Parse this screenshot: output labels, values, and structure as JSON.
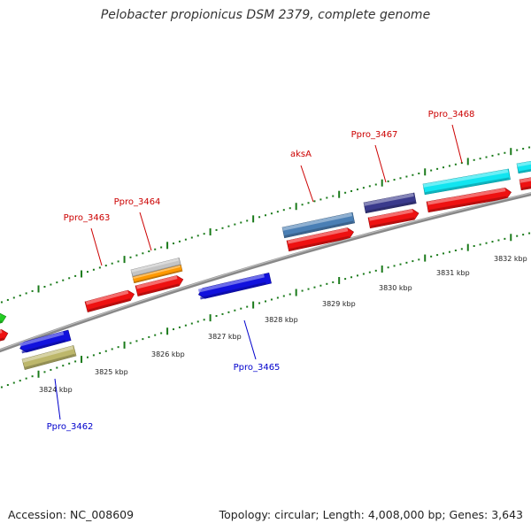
{
  "title": "Pelobacter propionicus DSM 2379, complete genome",
  "footer": {
    "accession": "Accession: NC_008609",
    "summary": "Topology: circular; Length: 4,008,000 bp; Genes: 3,643"
  },
  "genes": [
    {
      "name": "Ppro_3462",
      "color": "#0000cc"
    },
    {
      "name": "Ppro_3463",
      "color": "#cc0000"
    },
    {
      "name": "Ppro_3464",
      "color": "#cc0000"
    },
    {
      "name": "Ppro_3465",
      "color": "#0000cc"
    },
    {
      "name": "aksA",
      "color": "#cc0000"
    },
    {
      "name": "Ppro_3467",
      "color": "#cc0000"
    },
    {
      "name": "Ppro_3468",
      "color": "#cc0000"
    }
  ],
  "scale_labels": [
    "3824 kbp",
    "3825 kbp",
    "3826 kbp",
    "3827 kbp",
    "3828 kbp",
    "3829 kbp",
    "3830 kbp",
    "3831 kbp",
    "3832 kbp"
  ],
  "colors": {
    "backbone": "#888888",
    "tick": "#1a7a1a",
    "feature_red": "#ee1111",
    "feature_blue": "#1111dd",
    "feature_steel": "#4a7fb5",
    "feature_navy": "#3a3a8c",
    "feature_cyan": "#11e5f0",
    "feature_khaki": "#bdb76b",
    "feature_gray": "#c4c4c4",
    "feature_orange": "#ff9900",
    "feature_green": "#22cc22",
    "label_red": "#cc0000",
    "label_blue": "#0000cc"
  }
}
